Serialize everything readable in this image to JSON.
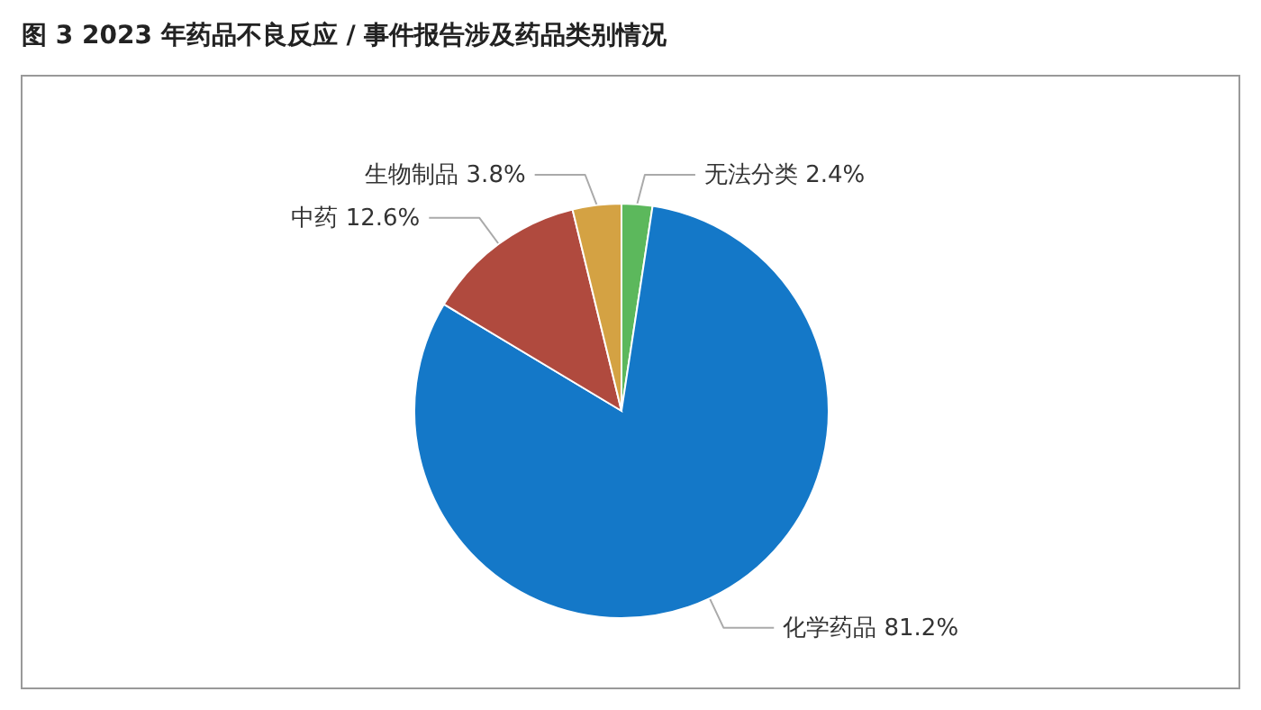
{
  "chart_data": {
    "type": "pie",
    "title": "图 3    2023 年药品不良反应 / 事件报告涉及药品类别情况",
    "categories": [
      "无法分类",
      "化学药品",
      "中药",
      "生物制品"
    ],
    "values": [
      2.4,
      81.2,
      12.6,
      3.8
    ],
    "colors": [
      "#5cb85c",
      "#1478c8",
      "#b04a3e",
      "#d4a243"
    ],
    "value_labels": [
      "2.4%",
      "81.2%",
      "12.6%",
      "3.8%"
    ]
  }
}
